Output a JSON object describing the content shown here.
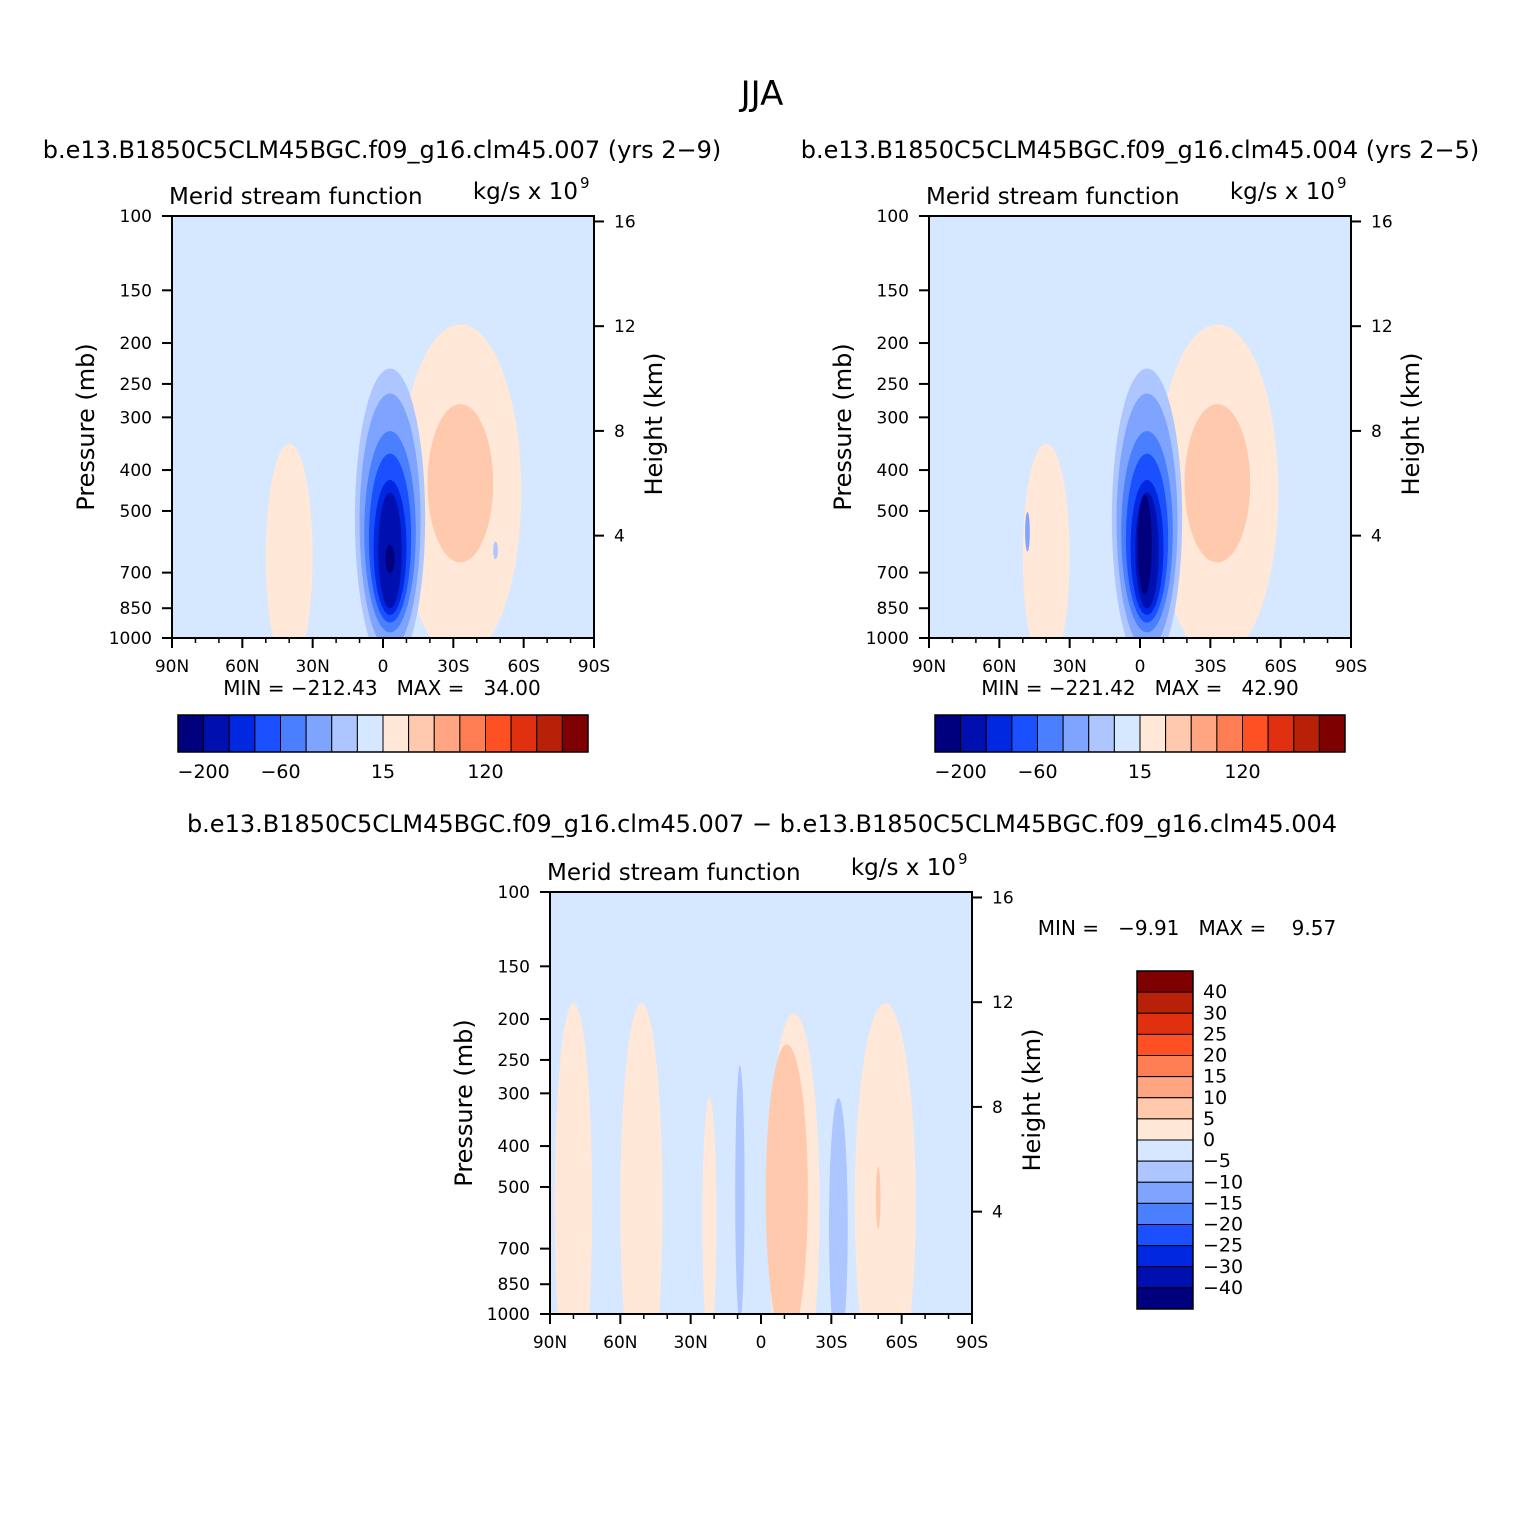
{
  "figure": {
    "title": "JJA",
    "colors": [
      "#00007f",
      "#0010b0",
      "#0028e0",
      "#1a50ff",
      "#4a7fff",
      "#7ea4ff",
      "#aec6ff",
      "#d6e8ff",
      "#ffe8d8",
      "#ffc9ae",
      "#ffa582",
      "#ff7d52",
      "#ff5024",
      "#e03010",
      "#b82008",
      "#7f0000"
    ]
  },
  "chart_data": [
    {
      "type": "heatmap",
      "panel_title": "b.e13.B1850C5CLM45BGC.f09_g16.clm45.007 (yrs 2−9)",
      "left_string": "Merid stream function",
      "right_string": "kg/s x 10",
      "right_string_exp": "9",
      "ylabel": "Pressure (mb)",
      "ylabel_right": "Height (km)",
      "x_ticks": [
        "90N",
        "60N",
        "30N",
        "0",
        "30S",
        "60S",
        "90S"
      ],
      "y_ticks": [
        "100",
        "150",
        "200",
        "250",
        "300",
        "400",
        "500",
        "700",
        "850",
        "1000"
      ],
      "y_ticks_right": [
        "16",
        "12",
        "8",
        "4"
      ],
      "stats": "MIN = −212.43   MAX =   34.00",
      "min": -212.43,
      "max": 34.0,
      "colorbar": {
        "orientation": "horizontal",
        "labels": [
          "−200",
          "−60",
          "15",
          "120"
        ]
      },
      "features": [
        {
          "lat": 0,
          "p": 480,
          "w": 20,
          "h": 780,
          "level": 7
        },
        {
          "lat": -55,
          "p": 520,
          "w": 55,
          "h": 820,
          "level": 7
        },
        {
          "lat": 40,
          "p": 640,
          "w": 10,
          "h": 700,
          "level": 8
        },
        {
          "lat": -33,
          "p": 450,
          "w": 26,
          "h": 650,
          "level": 8
        },
        {
          "lat": -33,
          "p": 430,
          "w": 14,
          "h": 350,
          "level": 9
        },
        {
          "lat": -3,
          "p": 520,
          "w": 15,
          "h": 700,
          "level": 6
        },
        {
          "lat": -3,
          "p": 530,
          "w": 13,
          "h": 640,
          "level": 5
        },
        {
          "lat": -3,
          "p": 560,
          "w": 11,
          "h": 560,
          "level": 4
        },
        {
          "lat": -3,
          "p": 580,
          "w": 9,
          "h": 500,
          "level": 3
        },
        {
          "lat": -3,
          "p": 610,
          "w": 7,
          "h": 430,
          "level": 2
        },
        {
          "lat": -3,
          "p": 620,
          "w": 5,
          "h": 380,
          "level": 1
        },
        {
          "lat": -3,
          "p": 650,
          "w": 2,
          "h": 100,
          "level": 0
        },
        {
          "lat": -48,
          "p": 620,
          "w": 1,
          "h": 60,
          "level": 6
        }
      ]
    },
    {
      "type": "heatmap",
      "panel_title": "b.e13.B1850C5CLM45BGC.f09_g16.clm45.004 (yrs 2−5)",
      "left_string": "Merid stream function",
      "right_string": "kg/s x 10",
      "right_string_exp": "9",
      "ylabel": "Pressure (mb)",
      "ylabel_right": "Height (km)",
      "x_ticks": [
        "90N",
        "60N",
        "30N",
        "0",
        "30S",
        "60S",
        "90S"
      ],
      "y_ticks": [
        "100",
        "150",
        "200",
        "250",
        "300",
        "400",
        "500",
        "700",
        "850",
        "1000"
      ],
      "y_ticks_right": [
        "16",
        "12",
        "8",
        "4"
      ],
      "stats": "MIN = −221.42   MAX =   42.90",
      "min": -221.42,
      "max": 42.9,
      "colorbar": {
        "orientation": "horizontal",
        "labels": [
          "−200",
          "−60",
          "15",
          "120"
        ]
      },
      "features": [
        {
          "lat": 0,
          "p": 480,
          "w": 20,
          "h": 780,
          "level": 7
        },
        {
          "lat": -55,
          "p": 520,
          "w": 55,
          "h": 820,
          "level": 7
        },
        {
          "lat": 40,
          "p": 640,
          "w": 10,
          "h": 700,
          "level": 8
        },
        {
          "lat": -33,
          "p": 450,
          "w": 26,
          "h": 650,
          "level": 8
        },
        {
          "lat": -33,
          "p": 430,
          "w": 14,
          "h": 350,
          "level": 9
        },
        {
          "lat": -3,
          "p": 520,
          "w": 15,
          "h": 700,
          "level": 6
        },
        {
          "lat": -3,
          "p": 530,
          "w": 13,
          "h": 640,
          "level": 5
        },
        {
          "lat": -3,
          "p": 560,
          "w": 11,
          "h": 560,
          "level": 4
        },
        {
          "lat": -3,
          "p": 580,
          "w": 9,
          "h": 500,
          "level": 3
        },
        {
          "lat": -3,
          "p": 610,
          "w": 7,
          "h": 430,
          "level": 2
        },
        {
          "lat": -3,
          "p": 620,
          "w": 5,
          "h": 380,
          "level": 1
        },
        {
          "lat": -2,
          "p": 600,
          "w": 3,
          "h": 320,
          "level": 0
        },
        {
          "lat": 48,
          "p": 560,
          "w": 1,
          "h": 120,
          "level": 5
        }
      ]
    },
    {
      "type": "heatmap",
      "panel_title": "b.e13.B1850C5CLM45BGC.f09_g16.clm45.007 − b.e13.B1850C5CLM45BGC.f09_g16.clm45.004",
      "left_string": "Merid stream function",
      "right_string": "kg/s x 10",
      "right_string_exp": "9",
      "ylabel": "Pressure (mb)",
      "ylabel_right": "Height (km)",
      "x_ticks": [
        "90N",
        "60N",
        "30N",
        "0",
        "30S",
        "60S",
        "90S"
      ],
      "y_ticks": [
        "100",
        "150",
        "200",
        "250",
        "300",
        "400",
        "500",
        "700",
        "850",
        "1000"
      ],
      "y_ticks_right": [
        "16",
        "12",
        "8",
        "4"
      ],
      "stats": "MIN =   −9.91   MAX =    9.57",
      "min": -9.91,
      "max": 9.57,
      "colorbar": {
        "orientation": "vertical",
        "labels": [
          "40",
          "30",
          "25",
          "20",
          "15",
          "10",
          "5",
          "0",
          "−5",
          "−10",
          "−15",
          "−20",
          "−25",
          "−30",
          "−40"
        ]
      },
      "features": [
        {
          "lat": 80,
          "p": 550,
          "w": 8,
          "h": 880,
          "level": 8
        },
        {
          "lat": 51,
          "p": 550,
          "w": 9,
          "h": 880,
          "level": 8
        },
        {
          "lat": 22,
          "p": 600,
          "w": 3,
          "h": 700,
          "level": 8
        },
        {
          "lat": 9,
          "p": 520,
          "w": 2,
          "h": 630,
          "level": 6
        },
        {
          "lat": -14,
          "p": 560,
          "w": 11,
          "h": 880,
          "level": 8
        },
        {
          "lat": -11,
          "p": 520,
          "w": 9,
          "h": 700,
          "level": 9
        },
        {
          "lat": -33,
          "p": 620,
          "w": 4,
          "h": 750,
          "level": 6
        },
        {
          "lat": -53,
          "p": 550,
          "w": 13,
          "h": 880,
          "level": 8
        },
        {
          "lat": -50,
          "p": 530,
          "w": 1,
          "h": 180,
          "level": 9
        }
      ]
    }
  ]
}
